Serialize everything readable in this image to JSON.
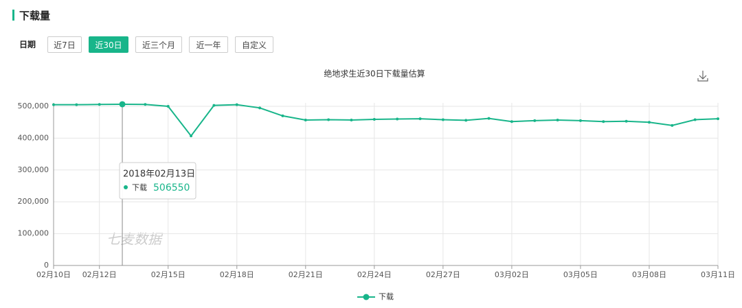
{
  "header": {
    "title": "下载量"
  },
  "filters": {
    "label": "日期",
    "buttons": [
      "近7日",
      "近30日",
      "近三个月",
      "近一年",
      "自定义"
    ],
    "active": 1
  },
  "watermark": "七麦数据",
  "tooltip": {
    "date": "2018年02月13日"
  },
  "chart_data": {
    "type": "line",
    "title": "绝地求生近30日下载量估算",
    "categories": [
      "02月10日",
      null,
      "02月12日",
      null,
      null,
      "02月15日",
      null,
      null,
      "02月18日",
      null,
      null,
      "02月21日",
      null,
      null,
      "02月24日",
      null,
      null,
      "02月27日",
      null,
      null,
      "03月02日",
      null,
      null,
      "03月05日",
      null,
      null,
      "03月08日",
      null,
      null,
      "03月11日"
    ],
    "series": [
      {
        "name": "下载",
        "color": "#18b58a",
        "values": [
          505000,
          505000,
          506000,
          506550,
          506000,
          500000,
          407000,
          503000,
          505000,
          495000,
          470000,
          457000,
          458000,
          457000,
          459000,
          460000,
          461000,
          458000,
          456000,
          462000,
          452000,
          455000,
          457000,
          455000,
          452000,
          453000,
          450000,
          440000,
          458000,
          461000
        ]
      }
    ],
    "ylim": [
      0,
      500000
    ],
    "yticks": [
      0,
      {
        "value": 100000,
        "label": "100,000"
      },
      {
        "value": 200000,
        "label": "200,000"
      },
      {
        "value": 300000,
        "label": "300,000"
      },
      {
        "value": 400000,
        "label": "400,000"
      },
      {
        "value": 500000,
        "label": "500,000"
      }
    ],
    "grid": true
  }
}
